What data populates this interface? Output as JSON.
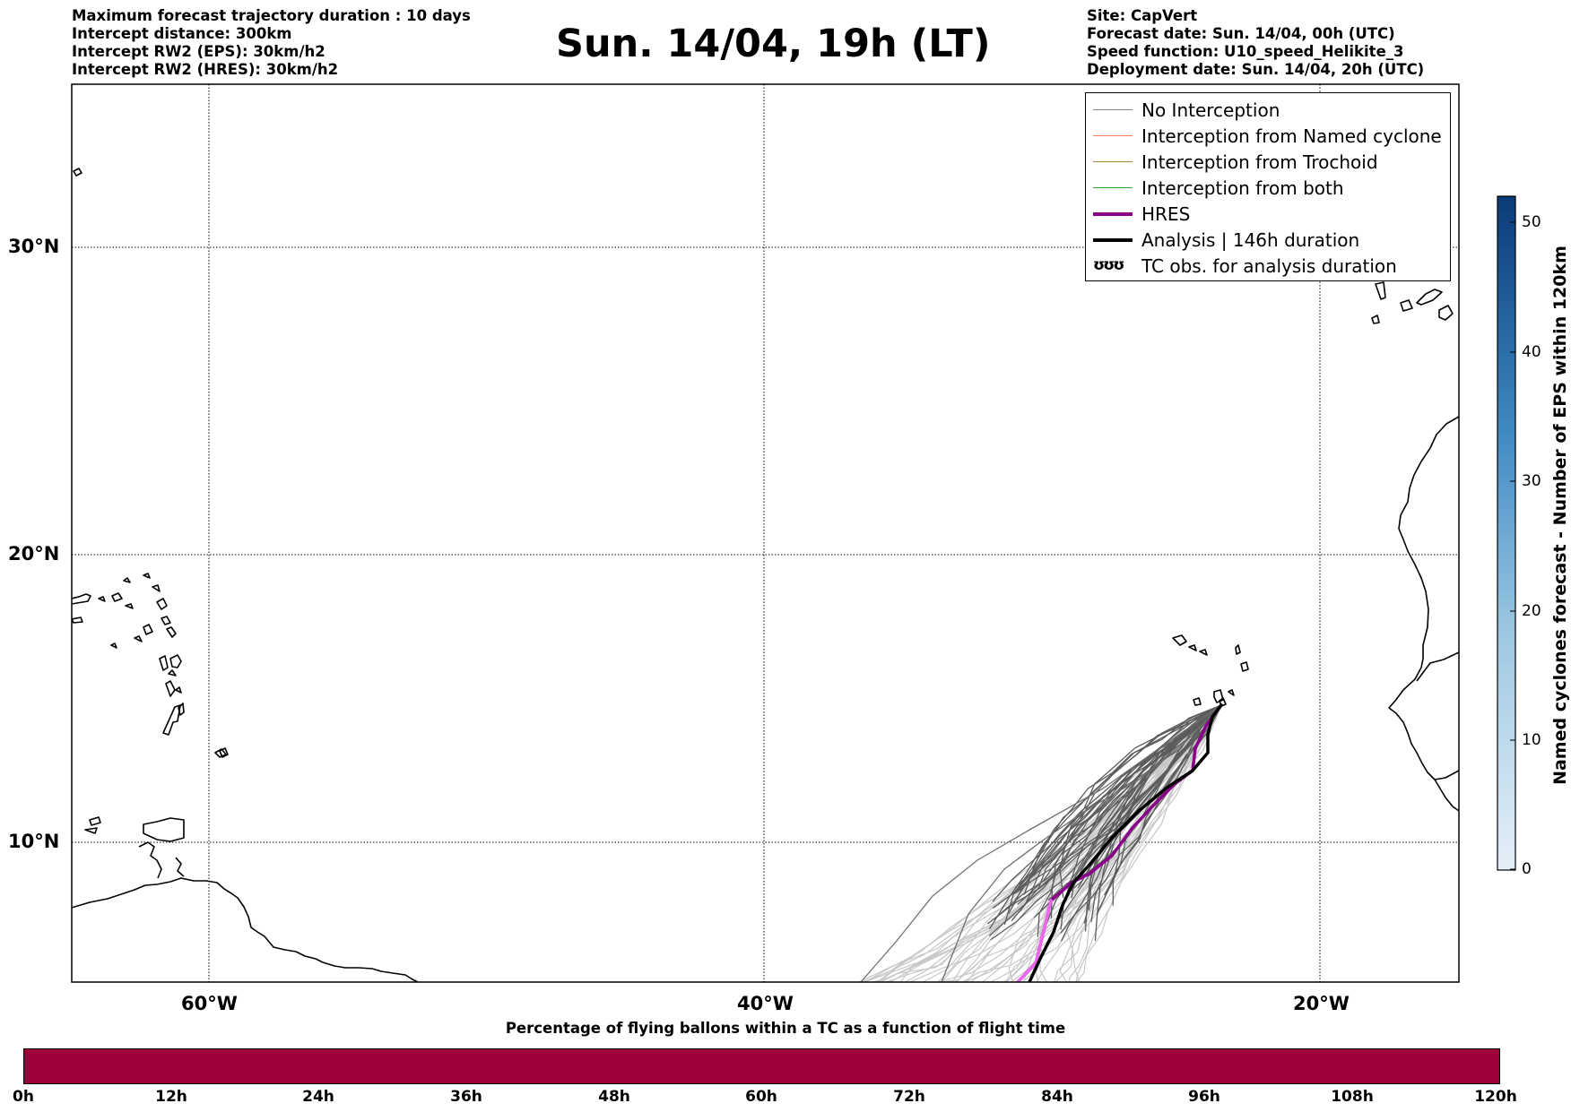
{
  "header": {
    "left_lines": [
      "Maximum forecast trajectory duration : 10 days",
      "Intercept distance: 300km",
      "Intercept RW2 (EPS):  30km/h2",
      "Intercept RW2 (HRES): 30km/h2"
    ],
    "title": "Sun. 14/04, 19h (LT)",
    "right_lines": [
      "Site: CapVert",
      "Forecast date: Sun. 14/04, 00h (UTC)",
      "Speed function: U10_speed_Helikite_3",
      "Deployment date: Sun. 14/04, 20h (UTC)"
    ]
  },
  "map": {
    "lat_labels": [
      "30°N",
      "20°N",
      "10°N"
    ],
    "lon_labels": [
      "60°W",
      "40°W",
      "20°W"
    ],
    "region": "Tropical North Atlantic — Caribbean to West Africa"
  },
  "legend": {
    "items": [
      {
        "label": "No Interception",
        "color": "#808080",
        "width": 1.5,
        "kind": "line"
      },
      {
        "label": "Interception from Named cyclone",
        "color": "#ff7f50",
        "width": 1.5,
        "kind": "line"
      },
      {
        "label": "Interception from Trochoid",
        "color": "#9a8a3a",
        "width": 1.5,
        "kind": "line"
      },
      {
        "label": "Interception from both",
        "color": "#2ca02c",
        "width": 1.5,
        "kind": "line"
      },
      {
        "label": "HRES",
        "color": "#8b008b",
        "width": 4,
        "kind": "line"
      },
      {
        "label": "Analysis | 146h duration",
        "color": "#000000",
        "width": 4,
        "kind": "line"
      },
      {
        "label": "TC obs. for analysis duration",
        "icon": "cyclone-symbols-icon",
        "symbol": "ʊʊʊ",
        "kind": "symbol"
      }
    ]
  },
  "colorbar": {
    "title": "Named cyclones forecast - Number of EPS within 120km",
    "ticks": [
      "0",
      "10",
      "20",
      "30",
      "40",
      "50"
    ],
    "range": [
      0,
      52
    ],
    "color_low": "#e6eff9",
    "color_high": "#0a3a78"
  },
  "timebar": {
    "title": "Percentage of flying ballons within a TC as a function of flight time",
    "ticks": [
      "0h",
      "12h",
      "24h",
      "36h",
      "48h",
      "60h",
      "72h",
      "84h",
      "96h",
      "108h",
      "120h"
    ],
    "fill_color": "#a0003a"
  }
}
